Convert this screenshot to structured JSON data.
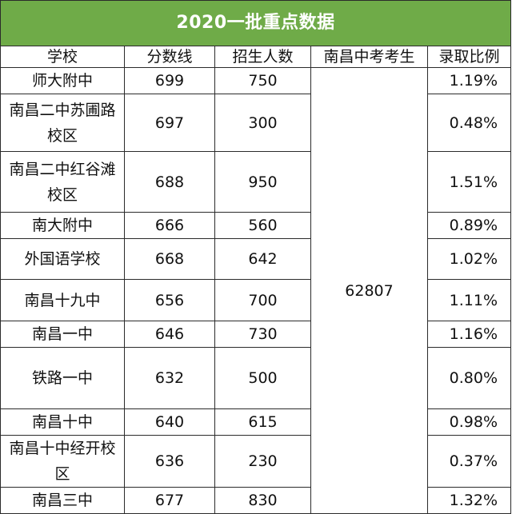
{
  "title": "2020一批重点数据",
  "headers": {
    "school": "学校",
    "score": "分数线",
    "enroll": "招生人数",
    "candidates": "南昌中考考生",
    "ratio": "录取比例"
  },
  "candidates_total": "62807",
  "rows": [
    {
      "school": "师大附中",
      "score": "699",
      "enroll": "750",
      "ratio": "1.19%"
    },
    {
      "school": "南昌二中苏圃路校区",
      "score": "697",
      "enroll": "300",
      "ratio": "0.48%"
    },
    {
      "school": "南昌二中红谷滩校区",
      "score": "688",
      "enroll": "950",
      "ratio": "1.51%"
    },
    {
      "school": "南大附中",
      "score": "666",
      "enroll": "560",
      "ratio": "0.89%"
    },
    {
      "school": "外国语学校",
      "score": "668",
      "enroll": "642",
      "ratio": "1.02%"
    },
    {
      "school": "南昌十九中",
      "score": "656",
      "enroll": "700",
      "ratio": "1.11%"
    },
    {
      "school": "南昌一中",
      "score": "646",
      "enroll": "730",
      "ratio": "1.16%"
    },
    {
      "school": "铁路一中",
      "score": "632",
      "enroll": "500",
      "ratio": "0.80%"
    },
    {
      "school": "南昌十中",
      "score": "640",
      "enroll": "615",
      "ratio": "0.98%"
    },
    {
      "school": "南昌十中经开校区",
      "score": "636",
      "enroll": "230",
      "ratio": "0.37%"
    },
    {
      "school": "南昌三中",
      "score": "677",
      "enroll": "830",
      "ratio": "1.32%"
    }
  ],
  "colors": {
    "title_bg": "#6fab48",
    "border": "#2b2b2b"
  }
}
